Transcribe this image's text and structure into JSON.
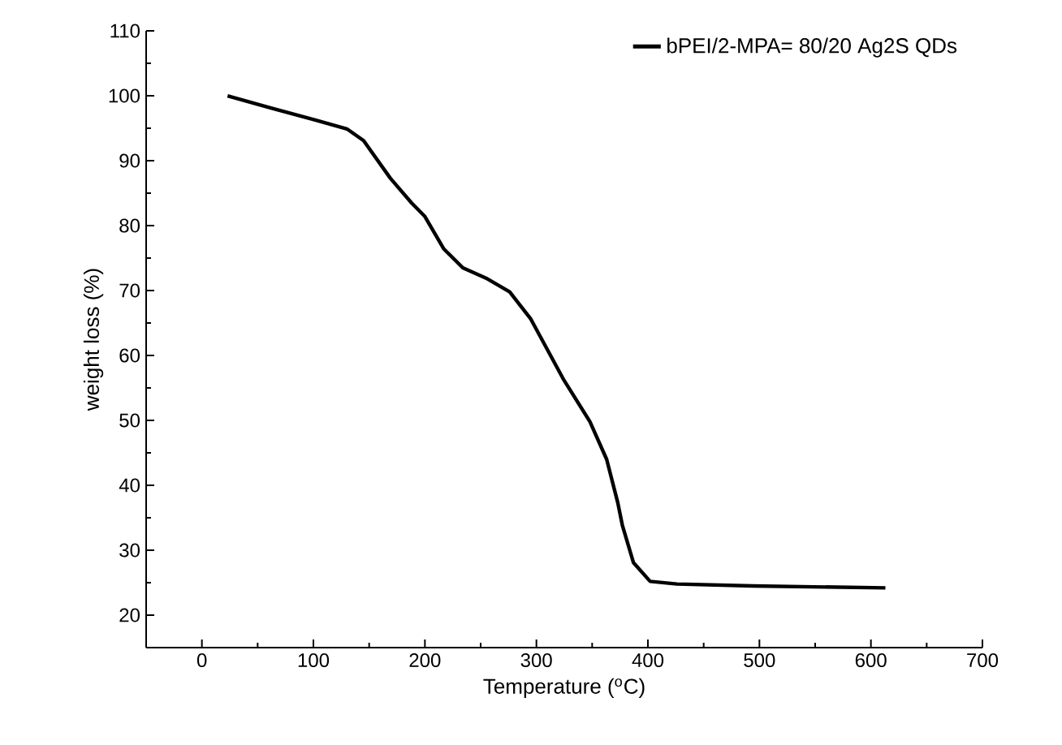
{
  "chart_data": {
    "type": "line",
    "xlabel": "Temperature ($^{o}$C)",
    "ylabel": "weight loss (%)",
    "xlim": [
      -50,
      700
    ],
    "xticks": [
      0,
      100,
      200,
      300,
      400,
      500,
      600,
      700
    ],
    "ylim": [
      15,
      110
    ],
    "yticks": [
      20,
      30,
      40,
      50,
      60,
      70,
      80,
      90,
      100,
      110
    ],
    "grid": false,
    "legend": "top right",
    "marker": "none",
    "line_style": "solid",
    "series": [
      {
        "name": "bPEI/2-MPA= 80/20 Ag2S QDs",
        "color": "#000000",
        "x": [
          23,
          62,
          101,
          130,
          145,
          169,
          188,
          200,
          217,
          234,
          256,
          276,
          295,
          324,
          348,
          363,
          373,
          377,
          387,
          402,
          426,
          494,
          613
        ],
        "values": [
          100,
          98.1,
          96.3,
          94.9,
          93.1,
          87.3,
          83.5,
          81.4,
          76.4,
          73.5,
          71.8,
          69.8,
          65.6,
          56.4,
          49.8,
          44,
          37.3,
          33.9,
          28.1,
          25.2,
          24.8,
          24.5,
          24.2
        ]
      }
    ]
  }
}
